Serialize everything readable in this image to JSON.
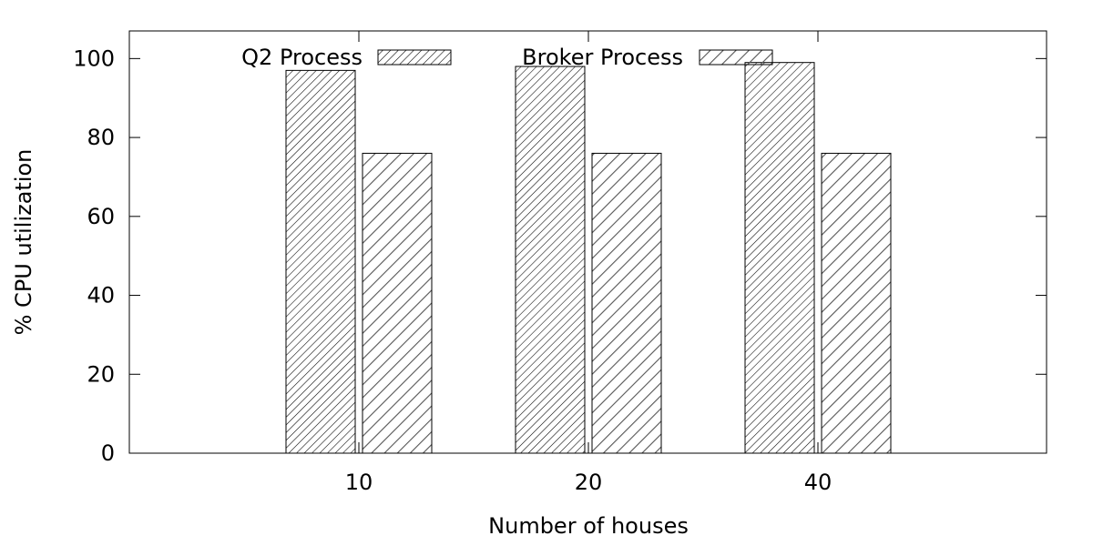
{
  "chart_data": {
    "type": "bar",
    "categories": [
      "10",
      "20",
      "40"
    ],
    "series": [
      {
        "name": "Q2 Process",
        "values": [
          97,
          98,
          99
        ],
        "pattern": "dense-hatch"
      },
      {
        "name": "Broker Process",
        "values": [
          76,
          76,
          76
        ],
        "pattern": "wide-hatch"
      }
    ],
    "xlabel": "Number of houses",
    "ylabel": "% CPU utilization",
    "ylim": [
      0,
      107
    ],
    "yticks": [
      0,
      20,
      40,
      60,
      80,
      100
    ],
    "grid": false,
    "legend_position": "top",
    "colors": {
      "stroke": "#000000",
      "hatch_dense": "#000000",
      "hatch_wide": "#555555",
      "background": "#ffffff"
    }
  }
}
